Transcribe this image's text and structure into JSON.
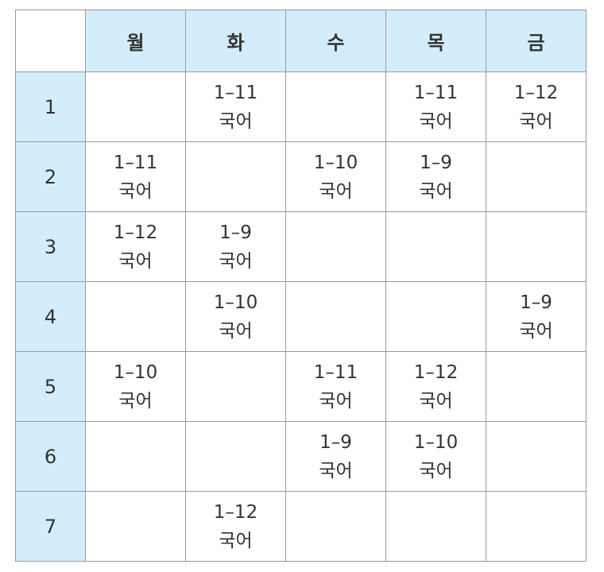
{
  "days": [
    "월",
    "화",
    "수",
    "목",
    "금"
  ],
  "rows": [
    {
      "period": "1",
      "cells": [
        {
          "cls": "",
          "subject": ""
        },
        {
          "cls": "1–11",
          "subject": "국어"
        },
        {
          "cls": "",
          "subject": ""
        },
        {
          "cls": "1–11",
          "subject": "국어"
        },
        {
          "cls": "1–12",
          "subject": "국어"
        }
      ]
    },
    {
      "period": "2",
      "cells": [
        {
          "cls": "1–11",
          "subject": "국어"
        },
        {
          "cls": "",
          "subject": ""
        },
        {
          "cls": "1–10",
          "subject": "국어"
        },
        {
          "cls": "1–9",
          "subject": "국어"
        },
        {
          "cls": "",
          "subject": ""
        }
      ]
    },
    {
      "period": "3",
      "cells": [
        {
          "cls": "1–12",
          "subject": "국어"
        },
        {
          "cls": "1–9",
          "subject": "국어"
        },
        {
          "cls": "",
          "subject": ""
        },
        {
          "cls": "",
          "subject": ""
        },
        {
          "cls": "",
          "subject": ""
        }
      ]
    },
    {
      "period": "4",
      "cells": [
        {
          "cls": "",
          "subject": ""
        },
        {
          "cls": "1–10",
          "subject": "국어"
        },
        {
          "cls": "",
          "subject": ""
        },
        {
          "cls": "",
          "subject": ""
        },
        {
          "cls": "1–9",
          "subject": "국어"
        }
      ]
    },
    {
      "period": "5",
      "cells": [
        {
          "cls": "1–10",
          "subject": "국어"
        },
        {
          "cls": "",
          "subject": ""
        },
        {
          "cls": "1–11",
          "subject": "국어"
        },
        {
          "cls": "1–12",
          "subject": "국어"
        },
        {
          "cls": "",
          "subject": ""
        }
      ]
    },
    {
      "period": "6",
      "cells": [
        {
          "cls": "",
          "subject": ""
        },
        {
          "cls": "",
          "subject": ""
        },
        {
          "cls": "1–9",
          "subject": "국어"
        },
        {
          "cls": "1–10",
          "subject": "국어"
        },
        {
          "cls": "",
          "subject": ""
        }
      ]
    },
    {
      "period": "7",
      "cells": [
        {
          "cls": "",
          "subject": ""
        },
        {
          "cls": "1–12",
          "subject": "국어"
        },
        {
          "cls": "",
          "subject": ""
        },
        {
          "cls": "",
          "subject": ""
        },
        {
          "cls": "",
          "subject": ""
        }
      ]
    }
  ],
  "colors": {
    "header_bg": "#d3edfb",
    "border": "#9a9a9a",
    "text": "#333333"
  }
}
